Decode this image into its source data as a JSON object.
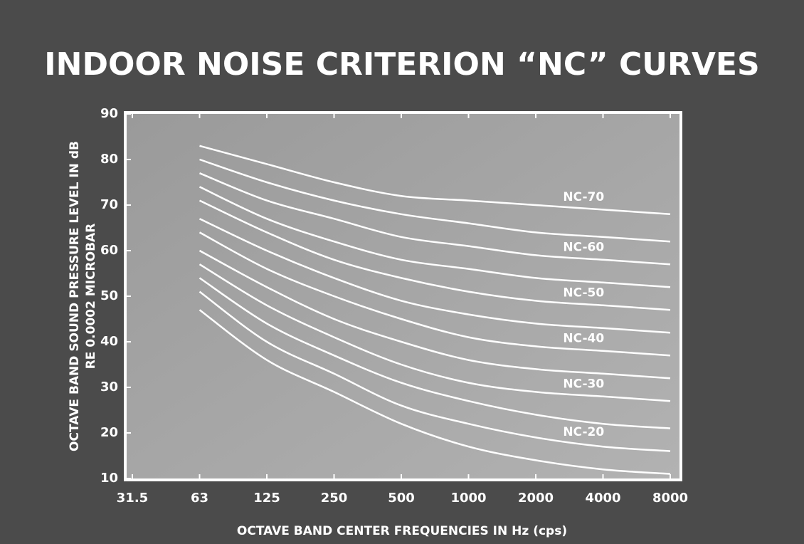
{
  "chart_data": {
    "type": "line",
    "title": "INDOOR NOISE CRITERION “NC” CURVES",
    "x_label": "OCTAVE BAND CENTER FREQUENCIES IN Hz (cps)",
    "y_label": [
      "OCTAVE BAND SOUND PRESSURE LEVEL IN dB",
      "RE 0.0002 MICROBAR"
    ],
    "categories": [
      "31.5",
      "63",
      "125",
      "250",
      "500",
      "1000",
      "2000",
      "4000",
      "8000"
    ],
    "ylim": [
      10,
      90
    ],
    "yticks": [
      10,
      20,
      30,
      40,
      50,
      60,
      70,
      80,
      90
    ],
    "color": "#ffffff",
    "series": [
      {
        "values": [
          null,
          47,
          36,
          29,
          22,
          17,
          14,
          12,
          11
        ]
      },
      {
        "name": "NC-20",
        "values": [
          null,
          51,
          40,
          33,
          26,
          22,
          19,
          17,
          16
        ]
      },
      {
        "values": [
          null,
          54,
          44,
          37,
          31,
          27,
          24,
          22,
          21
        ]
      },
      {
        "name": "NC-30",
        "values": [
          null,
          57,
          48,
          41,
          35,
          31,
          29,
          28,
          27
        ]
      },
      {
        "values": [
          null,
          60,
          52,
          45,
          40,
          36,
          34,
          33,
          32
        ]
      },
      {
        "name": "NC-40",
        "values": [
          null,
          64,
          56,
          50,
          45,
          41,
          39,
          38,
          37
        ]
      },
      {
        "values": [
          null,
          67,
          60,
          54,
          49,
          46,
          44,
          43,
          42
        ]
      },
      {
        "name": "NC-50",
        "values": [
          null,
          71,
          64,
          58,
          54,
          51,
          49,
          48,
          47
        ]
      },
      {
        "values": [
          null,
          74,
          67,
          62,
          58,
          56,
          54,
          53,
          52
        ]
      },
      {
        "name": "NC-60",
        "values": [
          null,
          77,
          71,
          67,
          63,
          61,
          59,
          58,
          57
        ]
      },
      {
        "values": [
          null,
          80,
          75,
          71,
          68,
          66,
          64,
          63,
          62
        ]
      },
      {
        "name": "NC-70",
        "values": [
          null,
          83,
          79,
          75,
          72,
          71,
          70,
          69,
          68
        ]
      }
    ]
  }
}
